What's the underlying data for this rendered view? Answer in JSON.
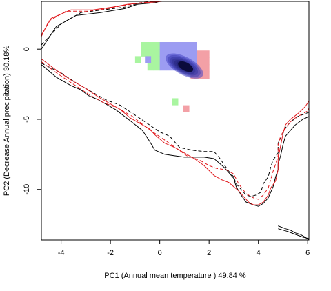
{
  "chart_data": {
    "type": "scatter",
    "xlabel": "PC1 (Annual mean temperature ) 49.84 %",
    "ylabel": "PC2 (Decrease Annual precipitation) 30.18%",
    "xlim": [
      -4.8,
      6.05
    ],
    "ylim": [
      -13.6,
      3.4
    ],
    "x_ticks": [
      -4,
      -2,
      0,
      2,
      4,
      6
    ],
    "y_ticks": [
      0,
      -5,
      -10
    ],
    "grid": false,
    "legend": "none",
    "colors": {
      "green": "#a9f5a0",
      "red": "#f3a0a6",
      "blue": "#9c9cf2",
      "density_dark": "#0b0b3c",
      "red_line": "#e0181c",
      "black_line": "#000000"
    },
    "niche_cells": {
      "cell_size": [
        0.25,
        0.5
      ],
      "green": [
        [
          -0.75,
          0.75,
          -0.5,
          0.5
        ],
        [
          -0.5,
          0.0,
          -1.5,
          -0.5
        ],
        [
          0.75,
          1.25,
          -1.5,
          -0.5
        ]
      ],
      "red": [
        [
          0.25,
          1.5,
          0.0,
          0.5
        ],
        [
          1.25,
          1.9,
          -2.1,
          -0.5
        ],
        [
          0.4,
          0.9,
          -1.25,
          -0.5
        ]
      ],
      "blue": [
        [
          0.0,
          1.5,
          -1.5,
          0.5
        ]
      ],
      "isolated": [
        {
          "x": -1.0,
          "y": -1.0,
          "color": "green"
        },
        {
          "x": -0.6,
          "y": -1.0,
          "color": "blue"
        },
        {
          "x": 0.5,
          "y": -4.0,
          "color": "green"
        },
        {
          "x": 0.95,
          "y": -4.5,
          "color": "red"
        }
      ],
      "density_center": [
        1.0,
        -1.2
      ]
    },
    "series": [
      {
        "color": "black",
        "dash": "solid",
        "x": [
          -4.8,
          -4.2,
          -3.4,
          -2.4,
          -1.4,
          -0.9,
          -0.2,
          0.0,
          0.2,
          0.6
        ],
        "y": [
          0.0,
          1.6,
          2.4,
          2.6,
          2.9,
          3.2,
          3.3,
          3.4,
          3.4,
          3.4
        ]
      },
      {
        "color": "black",
        "dash": "dashed",
        "x": [
          -4.8,
          -4.0,
          -3.2,
          -2.3,
          -1.4,
          -0.8,
          -0.2,
          0.2,
          0.6
        ],
        "y": [
          0.3,
          1.8,
          2.6,
          2.8,
          3.0,
          3.3,
          3.4,
          3.4,
          3.4
        ]
      },
      {
        "color": "red",
        "dash": "solid",
        "x": [
          -4.8,
          -4.4,
          -3.6,
          -2.7,
          -1.9,
          -1.3,
          -0.6,
          0.1,
          0.5
        ],
        "y": [
          1.0,
          2.2,
          2.8,
          2.8,
          3.0,
          3.2,
          3.3,
          3.4,
          3.4
        ]
      },
      {
        "color": "red",
        "dash": "dashed",
        "x": [
          -4.8,
          -4.5,
          -3.8,
          -2.9,
          -2.1,
          -1.5,
          -0.8,
          0.0
        ],
        "y": [
          0.9,
          2.0,
          2.7,
          2.7,
          2.9,
          3.1,
          3.3,
          3.4
        ]
      },
      {
        "color": "black",
        "dash": "solid",
        "x": [
          -4.8,
          -4.2,
          -3.6,
          -3.2,
          -2.9,
          -2.5,
          -2.2,
          -1.8,
          -1.2,
          -0.7,
          -0.4,
          -0.2,
          0.2,
          0.6,
          1.0,
          1.4,
          1.8,
          2.2,
          2.4,
          2.6,
          2.8,
          3.0,
          3.1,
          3.3,
          3.5,
          3.8,
          4.0,
          4.2,
          4.4,
          4.5,
          4.6,
          4.7,
          4.8,
          4.8,
          4.9,
          5.0,
          5.1,
          5.3,
          5.5,
          5.8,
          6.05
        ],
        "y": [
          -1.1,
          -2.0,
          -2.6,
          -2.9,
          -3.3,
          -3.6,
          -3.9,
          -4.3,
          -5.1,
          -5.8,
          -6.6,
          -7.2,
          -7.5,
          -7.6,
          -7.7,
          -7.7,
          -7.7,
          -7.8,
          -8.1,
          -8.4,
          -8.8,
          -9.2,
          -9.8,
          -10.4,
          -10.9,
          -11.1,
          -11.2,
          -11.0,
          -10.6,
          -10.2,
          -9.8,
          -9.1,
          -8.6,
          -8.2,
          -7.6,
          -6.8,
          -6.2,
          -5.8,
          -5.4,
          -5.0,
          -4.8
        ]
      },
      {
        "color": "black",
        "dash": "dashed",
        "x": [
          -4.8,
          -4.0,
          -3.4,
          -2.8,
          -2.2,
          -1.6,
          -1.0,
          -0.5,
          0.0,
          0.4,
          0.8,
          1.3,
          1.8,
          2.2,
          2.4,
          2.6,
          2.8,
          3.0,
          3.1,
          3.3,
          3.5,
          3.7,
          3.9,
          4.1,
          4.2,
          4.4,
          4.5,
          4.6,
          4.8,
          4.8,
          5.0,
          5.1,
          5.3,
          5.6,
          5.9,
          6.05
        ],
        "y": [
          -1.0,
          -1.7,
          -2.4,
          -3.0,
          -3.6,
          -4.0,
          -4.7,
          -5.3,
          -5.9,
          -6.2,
          -7.0,
          -7.2,
          -7.3,
          -7.3,
          -7.7,
          -8.2,
          -8.7,
          -9.1,
          -9.6,
          -10.0,
          -10.4,
          -10.5,
          -10.4,
          -10.2,
          -9.6,
          -9.1,
          -8.4,
          -7.9,
          -7.4,
          -6.7,
          -6.0,
          -5.6,
          -5.2,
          -4.8,
          -4.6,
          -4.5
        ]
      },
      {
        "color": "red",
        "dash": "solid",
        "x": [
          -4.8,
          -4.2,
          -3.6,
          -3.0,
          -2.5,
          -2.0,
          -1.6,
          -1.2,
          -0.8,
          -0.4,
          -0.2,
          0.2,
          0.6,
          1.0,
          1.4,
          1.8,
          2.2,
          2.5,
          2.8,
          3.0,
          3.2,
          3.4,
          3.6,
          3.8,
          4.0,
          4.2,
          4.4,
          4.5,
          4.7,
          4.8,
          4.8,
          4.9,
          5.0,
          5.1,
          5.3,
          5.6,
          5.9,
          6.05
        ],
        "y": [
          -0.7,
          -1.5,
          -2.2,
          -2.8,
          -3.4,
          -3.9,
          -4.3,
          -4.9,
          -5.3,
          -5.7,
          -6.1,
          -6.7,
          -7.0,
          -7.4,
          -7.8,
          -8.3,
          -9.0,
          -9.3,
          -9.5,
          -9.8,
          -10.1,
          -10.5,
          -10.9,
          -11.1,
          -11.1,
          -10.9,
          -10.4,
          -9.9,
          -9.4,
          -8.6,
          -7.8,
          -6.9,
          -6.0,
          -5.4,
          -5.0,
          -4.6,
          -4.1,
          -3.7
        ]
      },
      {
        "color": "red",
        "dash": "dashed",
        "x": [
          -4.8,
          -4.1,
          -3.5,
          -2.9,
          -2.3,
          -1.7,
          -1.1,
          -0.6,
          -0.2,
          0.3,
          0.7,
          1.1,
          1.6,
          2.0,
          2.3,
          2.7,
          3.0,
          3.2,
          3.5,
          3.8,
          4.0,
          4.2,
          4.4,
          4.5,
          4.6,
          4.7,
          4.8,
          4.8,
          4.9,
          5.0,
          5.2,
          5.4,
          5.7,
          6.0,
          6.05
        ],
        "y": [
          -0.9,
          -1.8,
          -2.5,
          -3.2,
          -3.8,
          -4.2,
          -4.8,
          -5.5,
          -6.0,
          -6.6,
          -7.1,
          -7.6,
          -7.9,
          -8.3,
          -8.5,
          -8.6,
          -8.9,
          -9.6,
          -10.3,
          -10.6,
          -10.7,
          -10.4,
          -9.9,
          -9.3,
          -8.7,
          -8.2,
          -7.6,
          -6.8,
          -6.2,
          -5.9,
          -5.4,
          -5.0,
          -4.7,
          -4.4,
          -4.2
        ]
      },
      {
        "color": "black",
        "dash": "solid",
        "x": [
          4.8,
          5.1,
          5.3,
          5.5,
          5.7,
          5.9,
          6.05
        ],
        "y": [
          -12.6,
          -12.8,
          -12.9,
          -13.1,
          -13.2,
          -13.4,
          -13.6
        ]
      },
      {
        "color": "black",
        "dash": "solid",
        "x": [
          4.8,
          5.2,
          5.5,
          5.8,
          6.05
        ],
        "y": [
          -12.8,
          -13.0,
          -13.2,
          -13.4,
          -13.5
        ]
      }
    ]
  }
}
